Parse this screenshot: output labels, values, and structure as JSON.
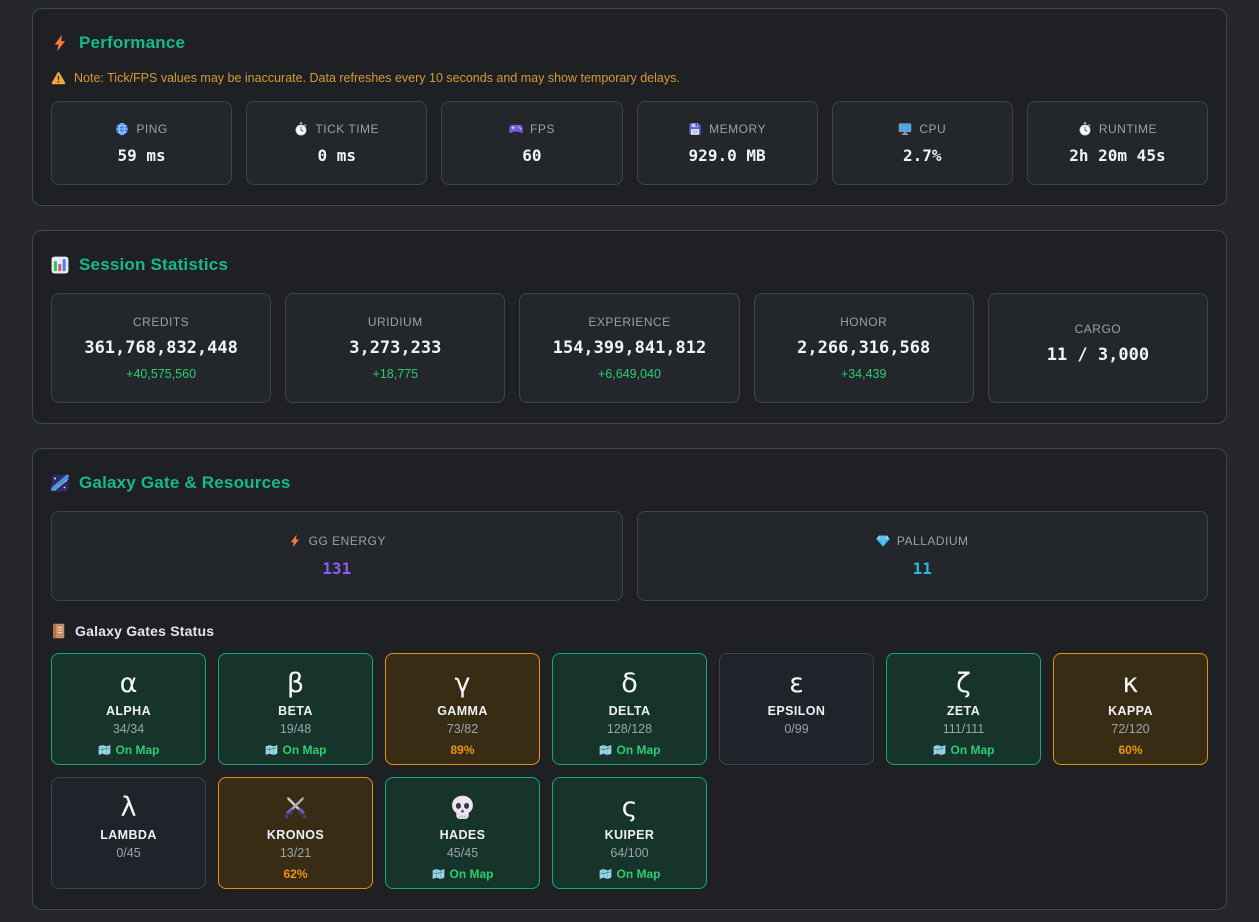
{
  "colors": {
    "page_bg": "#25272c",
    "panel_bg": "#1e2024",
    "panel_border": "#3d4553",
    "card_bg": "#23262b",
    "card_border": "#3d434e",
    "title_green": "#16b989",
    "warning_orange": "#d49a35",
    "label_gray": "#9aa1ab",
    "value_white": "#f1f3f6",
    "delta_green": "#2ecc71",
    "count_gray": "#9ba2ad",
    "map_green": "#2ecc71",
    "percent_orange": "#ee9410",
    "gate_green_bg": "#17342a",
    "gate_green_border": "#10a974",
    "gate_orange_bg": "#392c15",
    "gate_orange_border": "#e2920e",
    "gate_gray_bg": "#202329",
    "gate_gray_border": "#3d434e"
  },
  "performance": {
    "icon": "bolt",
    "title": "Performance",
    "note_icon": "warning",
    "note": "Note: Tick/FPS values may be inaccurate. Data refreshes every 10 seconds and may show temporary delays.",
    "cards": [
      {
        "icon": "globe",
        "label": "PING",
        "value": "59 ms"
      },
      {
        "icon": "stopwatch",
        "label": "TICK TIME",
        "value": "0 ms"
      },
      {
        "icon": "gamepad",
        "label": "FPS",
        "value": "60"
      },
      {
        "icon": "floppy",
        "label": "MEMORY",
        "value": "929.0 MB"
      },
      {
        "icon": "monitor",
        "label": "CPU",
        "value": "2.7%"
      },
      {
        "icon": "stopwatch",
        "label": "RUNTIME",
        "value": "2h 20m 45s"
      }
    ]
  },
  "session": {
    "icon": "chart",
    "title": "Session Statistics",
    "cards": [
      {
        "label": "CREDITS",
        "value": "361,768,832,448",
        "delta": "+40,575,560"
      },
      {
        "label": "URIDIUM",
        "value": "3,273,233",
        "delta": "+18,775"
      },
      {
        "label": "EXPERIENCE",
        "value": "154,399,841,812",
        "delta": "+6,649,040"
      },
      {
        "label": "HONOR",
        "value": "2,266,316,568",
        "delta": "+34,439"
      },
      {
        "label": "CARGO",
        "value": "11 / 3,000"
      }
    ]
  },
  "galaxy": {
    "icon": "galaxy",
    "title": "Galaxy Gate & Resources",
    "resources": [
      {
        "icon": "bolt",
        "label": "GG ENERGY",
        "value": "131",
        "color": "#8b5cf6"
      },
      {
        "icon": "gem",
        "label": "PALLADIUM",
        "value": "11",
        "color": "#2cb8dc"
      }
    ],
    "gates_icon": "ledger",
    "gates_title": "Galaxy Gates Status",
    "gates": [
      {
        "symbol": "α",
        "name": "ALPHA",
        "count": "34/34",
        "status": "On Map",
        "status_type": "map",
        "status_icon": "map",
        "state": "green"
      },
      {
        "symbol": "β",
        "name": "BETA",
        "count": "19/48",
        "status": "On Map",
        "status_type": "map",
        "status_icon": "map",
        "state": "green"
      },
      {
        "symbol": "γ",
        "name": "GAMMA",
        "count": "73/82",
        "status": "89%",
        "status_type": "percent",
        "state": "orange"
      },
      {
        "symbol": "δ",
        "name": "DELTA",
        "count": "128/128",
        "status": "On Map",
        "status_type": "map",
        "status_icon": "map",
        "state": "green"
      },
      {
        "symbol": "ε",
        "name": "EPSILON",
        "count": "0/99",
        "state": "gray"
      },
      {
        "symbol": "ζ",
        "name": "ZETA",
        "count": "111/111",
        "status": "On Map",
        "status_type": "map",
        "status_icon": "map",
        "state": "green"
      },
      {
        "symbol": "κ",
        "name": "KAPPA",
        "count": "72/120",
        "status": "60%",
        "status_type": "percent",
        "state": "orange"
      },
      {
        "symbol": "λ",
        "name": "LAMBDA",
        "count": "0/45",
        "state": "gray"
      },
      {
        "symbol_icon": "swords",
        "name": "KRONOS",
        "count": "13/21",
        "status": "62%",
        "status_type": "percent",
        "state": "orange"
      },
      {
        "symbol_icon": "skull",
        "name": "HADES",
        "count": "45/45",
        "status": "On Map",
        "status_type": "map",
        "status_icon": "map",
        "state": "green"
      },
      {
        "symbol": "ς",
        "name": "KUIPER",
        "count": "64/100",
        "status": "On Map",
        "status_type": "map",
        "status_icon": "map",
        "state": "green"
      }
    ]
  }
}
